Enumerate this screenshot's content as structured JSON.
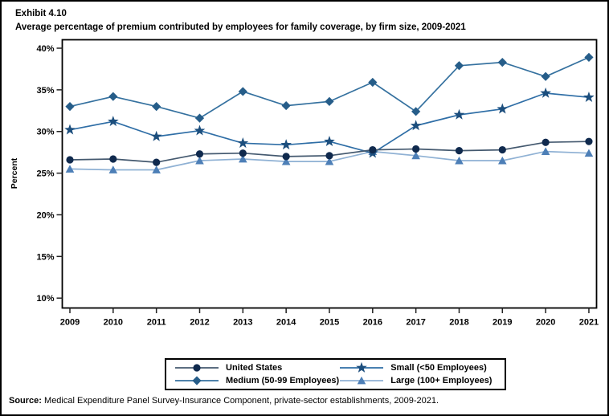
{
  "page": {
    "exhibit_label": "Exhibit 4.10",
    "title": "Average percentage of premium contributed by employees for family coverage, by firm size, 2009-2021",
    "source_prefix": "Source:",
    "source_text": " Medical Expenditure Panel Survey-Insurance Component, private-sector establishments, 2009-2021."
  },
  "legend": {
    "entries": [
      "United States",
      "Small (<50 Employees)",
      "Medium (50-99 Employees)",
      "Large (100+ Employees)"
    ]
  },
  "chart_data": {
    "type": "line",
    "title": "Average percentage of premium contributed by employees for family coverage, by firm size, 2009-2021",
    "xlabel": "",
    "ylabel": "Percent",
    "ylim": [
      10,
      40
    ],
    "yticks": [
      40,
      35,
      30,
      25,
      20,
      15,
      10
    ],
    "ytick_labels": [
      "40%",
      "35%",
      "30%",
      "25%",
      "20%",
      "15%",
      "10%"
    ],
    "x": [
      2009,
      2010,
      2011,
      2012,
      2013,
      2014,
      2015,
      2016,
      2017,
      2018,
      2019,
      2020,
      2021
    ],
    "grid": false,
    "legend_position": "bottom",
    "series": [
      {
        "name": "Large (100+ Employees)",
        "marker": "triangle",
        "color": "#4d7fb7",
        "line_color": "#8fb1d4",
        "values": [
          25.5,
          25.4,
          25.4,
          26.5,
          26.7,
          26.4,
          26.4,
          27.6,
          27.1,
          26.5,
          26.5,
          27.6,
          27.4
        ]
      },
      {
        "name": "Small (<50 Employees)",
        "marker": "star",
        "color": "#1c4e7d",
        "line_color": "#2f6ea6",
        "values": [
          30.2,
          31.2,
          29.4,
          30.1,
          28.6,
          28.4,
          28.8,
          27.4,
          30.7,
          32.0,
          32.7,
          34.6,
          34.1
        ]
      },
      {
        "name": "Medium (50-99 Employees)",
        "marker": "diamond",
        "color": "#265d89",
        "line_color": "#35719f",
        "values": [
          33.0,
          34.2,
          33.0,
          31.6,
          34.8,
          33.1,
          33.6,
          35.9,
          32.4,
          37.9,
          38.3,
          36.6,
          38.9
        ]
      },
      {
        "name": "United States",
        "marker": "circle",
        "color": "#102a4e",
        "line_color": "#44596f",
        "values": [
          26.6,
          26.7,
          26.3,
          27.3,
          27.4,
          27.0,
          27.1,
          27.8,
          27.9,
          27.7,
          27.8,
          28.7,
          28.8
        ]
      }
    ]
  }
}
